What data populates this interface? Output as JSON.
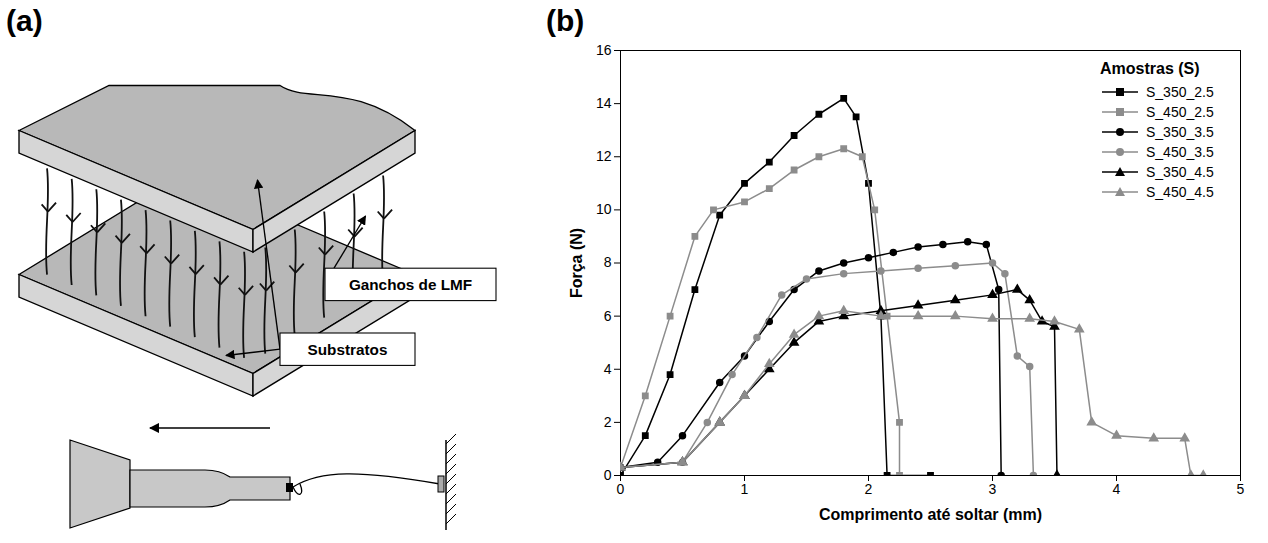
{
  "diagram": {
    "panel_label": "(a)",
    "labels": {
      "hooks": "Ganchos de LMF",
      "substrates": "Substratos"
    }
  },
  "chart_data": {
    "type": "line",
    "panel_label": "(b)",
    "x_label": "Comprimento até soltar (mm)",
    "y_label": "Força (N)",
    "legend_title": "Amostras (S)",
    "legend": "top-right",
    "grid": false,
    "xlim": [
      0,
      5
    ],
    "xticks": [
      0,
      1,
      2,
      3,
      4,
      5
    ],
    "ylim": [
      0,
      16
    ],
    "yticks": [
      0,
      2,
      4,
      6,
      8,
      10,
      12,
      14,
      16
    ],
    "series": [
      {
        "name": "S_350_2.5",
        "color": "#000000",
        "marker": "square",
        "x": [
          0,
          0.2,
          0.4,
          0.6,
          0.8,
          1.0,
          1.2,
          1.4,
          1.6,
          1.8,
          1.9,
          2.0,
          2.1,
          2.15,
          2.5
        ],
        "values": [
          0,
          1.5,
          3.8,
          7,
          9.8,
          11,
          11.8,
          12.8,
          13.6,
          14.2,
          13.5,
          11,
          6,
          0,
          0
        ]
      },
      {
        "name": "S_450_2.5",
        "color": "#8c8c8c",
        "marker": "square",
        "x": [
          0,
          0.2,
          0.4,
          0.6,
          0.75,
          1.0,
          1.2,
          1.4,
          1.6,
          1.8,
          1.95,
          2.05,
          2.15,
          2.25,
          2.25
        ],
        "values": [
          0.3,
          3,
          6,
          9,
          10,
          10.3,
          10.8,
          11.5,
          12,
          12.3,
          12,
          10,
          6,
          2,
          0
        ]
      },
      {
        "name": "S_350_3.5",
        "color": "#000000",
        "marker": "circle",
        "x": [
          0,
          0.3,
          0.5,
          0.8,
          1.0,
          1.2,
          1.4,
          1.6,
          1.8,
          2.0,
          2.2,
          2.4,
          2.6,
          2.8,
          2.95,
          3.05,
          3.07
        ],
        "values": [
          0.3,
          0.5,
          1.5,
          3.5,
          4.5,
          5.8,
          7,
          7.7,
          8,
          8.2,
          8.4,
          8.6,
          8.7,
          8.8,
          8.7,
          7,
          0
        ]
      },
      {
        "name": "S_450_3.5",
        "color": "#8c8c8c",
        "marker": "circle",
        "x": [
          0,
          0.5,
          0.7,
          0.9,
          1.1,
          1.3,
          1.5,
          1.8,
          2.1,
          2.4,
          2.7,
          3.0,
          3.1,
          3.2,
          3.3,
          3.33
        ],
        "values": [
          0.3,
          0.5,
          2,
          3.8,
          5.2,
          6.8,
          7.4,
          7.6,
          7.7,
          7.8,
          7.9,
          8.0,
          7.6,
          4.5,
          4.1,
          0
        ]
      },
      {
        "name": "S_350_4.5",
        "color": "#000000",
        "marker": "triangle",
        "x": [
          0,
          0.5,
          0.8,
          1.0,
          1.2,
          1.4,
          1.6,
          1.8,
          2.1,
          2.4,
          2.7,
          3.0,
          3.2,
          3.3,
          3.4,
          3.5,
          3.52
        ],
        "values": [
          0.3,
          0.5,
          2,
          3,
          4,
          5,
          5.8,
          6,
          6.2,
          6.4,
          6.6,
          6.8,
          7,
          6.6,
          5.8,
          5.6,
          0
        ]
      },
      {
        "name": "S_450_4.5",
        "color": "#8c8c8c",
        "marker": "triangle",
        "x": [
          0,
          0.5,
          0.8,
          1.0,
          1.2,
          1.4,
          1.6,
          1.8,
          2.1,
          2.4,
          2.7,
          3.0,
          3.3,
          3.5,
          3.7,
          3.8,
          4.0,
          4.3,
          4.55,
          4.6,
          4.7
        ],
        "values": [
          0.3,
          0.5,
          2,
          3,
          4.2,
          5.3,
          6,
          6.2,
          6,
          6,
          6,
          5.9,
          5.9,
          5.8,
          5.5,
          2,
          1.5,
          1.4,
          1.4,
          0,
          0
        ]
      }
    ]
  }
}
